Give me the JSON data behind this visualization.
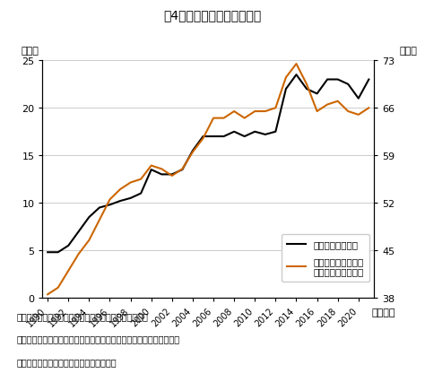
{
  "title": "围4　製造業の海外生産比率",
  "ylabel_left": "（％）",
  "ylabel_right": "（％）",
  "xlabel": "（年度）",
  "ylim_left": [
    0,
    25
  ],
  "ylim_right": [
    38,
    73
  ],
  "yticks_left": [
    0,
    5,
    10,
    15,
    20,
    25
  ],
  "yticks_right": [
    38,
    45,
    52,
    59,
    66,
    73
  ],
  "xticks": [
    1990,
    1992,
    1994,
    1996,
    1998,
    2000,
    2002,
    2004,
    2006,
    2008,
    2010,
    2012,
    2014,
    2016,
    2018,
    2020
  ],
  "years": [
    1990,
    1991,
    1992,
    1993,
    1994,
    1995,
    1996,
    1997,
    1998,
    1999,
    2000,
    2001,
    2002,
    2003,
    2004,
    2005,
    2006,
    2007,
    2008,
    2009,
    2010,
    2011,
    2012,
    2013,
    2014,
    2015,
    2016,
    2017,
    2018,
    2019,
    2020,
    2021
  ],
  "black_line": [
    4.8,
    4.8,
    5.5,
    7.0,
    8.5,
    9.5,
    9.8,
    10.2,
    10.5,
    11.0,
    13.5,
    13.0,
    13.0,
    13.5,
    15.5,
    17.0,
    17.0,
    17.0,
    17.5,
    17.0,
    17.5,
    17.2,
    17.5,
    22.0,
    23.5,
    22.0,
    21.5,
    23.0,
    23.0,
    22.5,
    21.0,
    23.0
  ],
  "orange_line_right": [
    38.5,
    39.5,
    42.0,
    44.5,
    46.5,
    49.5,
    52.5,
    54.0,
    55.0,
    55.5,
    57.5,
    57.0,
    56.0,
    57.0,
    59.5,
    61.5,
    64.5,
    64.5,
    65.5,
    64.5,
    65.5,
    65.5,
    66.0,
    70.5,
    72.5,
    69.5,
    65.5,
    66.5,
    67.0,
    65.5,
    65.0,
    66.0
  ],
  "black_color": "#000000",
  "orange_color": "#CC6600",
  "line_width": 1.5,
  "grid_color": "#cccccc",
  "background_color": "#ffffff",
  "legend_label_black": "海外現地生産比率",
  "legend_label_orange": "海外現地生産を行う\n企業の割合（右軸）",
  "footnote1": "内閣府「企業行動に関するアンケート調査」より作成。",
  "footnote2": "％海外現地生産比率＝海外現地生産による生産高／（国内生産による",
  "footnote3": "る生産高＋海外現地生産による生産高）。"
}
